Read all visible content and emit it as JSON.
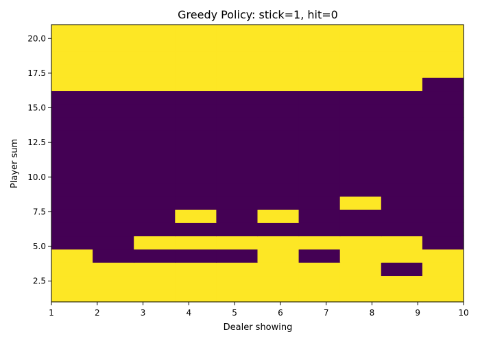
{
  "chart_data": {
    "type": "heatmap",
    "title": "Greedy Policy: stick=1, hit=0",
    "xlabel": "Dealer showing",
    "ylabel": "Player sum",
    "xlim": [
      1,
      10
    ],
    "ylim": [
      1,
      21
    ],
    "x_ticks": [
      "1",
      "2",
      "3",
      "4",
      "5",
      "6",
      "7",
      "8",
      "9",
      "10"
    ],
    "y_ticks": [
      "2.5",
      "5.0",
      "7.5",
      "10.0",
      "12.5",
      "15.0",
      "17.5",
      "20.0"
    ],
    "y_tick_values": [
      2.5,
      5.0,
      7.5,
      10.0,
      12.5,
      15.0,
      17.5,
      20.0
    ],
    "dealer_showing": [
      1,
      2,
      3,
      4,
      5,
      6,
      7,
      8,
      9,
      10
    ],
    "player_sum": [
      1,
      2,
      3,
      4,
      5,
      6,
      7,
      8,
      9,
      10,
      11,
      12,
      13,
      14,
      15,
      16,
      17,
      18,
      19,
      20,
      21
    ],
    "policy_rows": [
      [
        1,
        1,
        1,
        1,
        1,
        1,
        1,
        1,
        1,
        1
      ],
      [
        1,
        1,
        1,
        1,
        1,
        1,
        1,
        1,
        1,
        1
      ],
      [
        1,
        1,
        1,
        1,
        1,
        1,
        1,
        1,
        0,
        1
      ],
      [
        1,
        0,
        0,
        0,
        0,
        1,
        0,
        1,
        1,
        1
      ],
      [
        0,
        0,
        1,
        1,
        1,
        1,
        1,
        1,
        1,
        0
      ],
      [
        0,
        0,
        0,
        0,
        0,
        0,
        0,
        0,
        0,
        0
      ],
      [
        0,
        0,
        0,
        1,
        0,
        1,
        0,
        0,
        0,
        0
      ],
      [
        0,
        0,
        0,
        0,
        0,
        0,
        0,
        1,
        0,
        0
      ],
      [
        0,
        0,
        0,
        0,
        0,
        0,
        0,
        0,
        0,
        0
      ],
      [
        0,
        0,
        0,
        0,
        0,
        0,
        0,
        0,
        0,
        0
      ],
      [
        0,
        0,
        0,
        0,
        0,
        0,
        0,
        0,
        0,
        0
      ],
      [
        0,
        0,
        0,
        0,
        0,
        0,
        0,
        0,
        0,
        0
      ],
      [
        0,
        0,
        0,
        0,
        0,
        0,
        0,
        0,
        0,
        0
      ],
      [
        0,
        0,
        0,
        0,
        0,
        0,
        0,
        0,
        0,
        0
      ],
      [
        0,
        0,
        0,
        0,
        0,
        0,
        0,
        0,
        0,
        0
      ],
      [
        0,
        0,
        0,
        0,
        0,
        0,
        0,
        0,
        0,
        0
      ],
      [
        1,
        1,
        1,
        1,
        1,
        1,
        1,
        1,
        1,
        0
      ],
      [
        1,
        1,
        1,
        1,
        1,
        1,
        1,
        1,
        1,
        1
      ],
      [
        1,
        1,
        1,
        1,
        1,
        1,
        1,
        1,
        1,
        1
      ],
      [
        1,
        1,
        1,
        1,
        1,
        1,
        1,
        1,
        1,
        1
      ],
      [
        1,
        1,
        1,
        1,
        1,
        1,
        1,
        1,
        1,
        1
      ]
    ],
    "colors": {
      "stick": "#fde725",
      "hit": "#440154"
    },
    "grid": false,
    "legend": "none"
  }
}
